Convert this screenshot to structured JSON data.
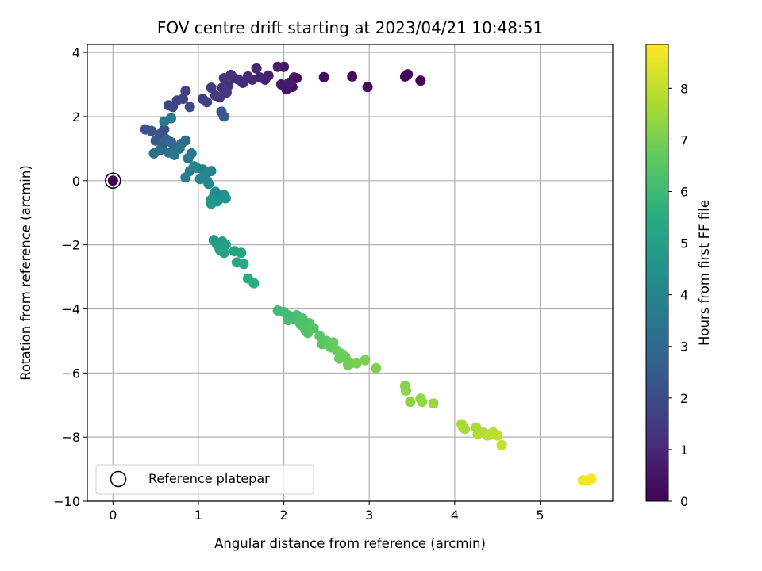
{
  "chart_data": {
    "type": "scatter",
    "title": "FOV centre drift starting at 2023/04/21 10:48:51",
    "xlabel": "Angular distance from reference (arcmin)",
    "ylabel": "Rotation from reference (arcmin)",
    "xlim": [
      -0.3,
      5.85
    ],
    "ylim": [
      -10,
      4.25
    ],
    "x_ticks": [
      0,
      1,
      2,
      3,
      4,
      5
    ],
    "x_tick_labels": [
      "0",
      "1",
      "2",
      "3",
      "4",
      "5"
    ],
    "y_ticks": [
      4,
      2,
      0,
      -2,
      -4,
      -6,
      -8,
      -10
    ],
    "y_tick_labels": [
      "4",
      "2",
      "0",
      "−2",
      "−4",
      "−6",
      "−8",
      "−10"
    ],
    "grid": true,
    "colormap": "viridis",
    "colorbar": {
      "label": "Hours from first FF file",
      "range": [
        0,
        8.85
      ],
      "ticks": [
        0,
        1,
        2,
        3,
        4,
        5,
        6,
        7,
        8
      ],
      "tick_labels": [
        "0",
        "1",
        "2",
        "3",
        "4",
        "5",
        "6",
        "7",
        "8"
      ]
    },
    "legend": {
      "position": "lower-left",
      "entries": [
        {
          "label": "Reference platepar",
          "marker": "open-circle"
        }
      ]
    },
    "reference_point": {
      "x": 0,
      "y": 0,
      "hours": 0
    },
    "series": [
      {
        "x": [
          3.6,
          3.42,
          3.45,
          2.98,
          2.8,
          2.47,
          2.1,
          2.12,
          2.15,
          2.03,
          2.0,
          1.97,
          2.06,
          1.93,
          1.82,
          1.78,
          1.72,
          1.68,
          1.63,
          1.58,
          1.52,
          1.47,
          1.42,
          1.38,
          1.35,
          1.3,
          1.28,
          1.33,
          1.25,
          1.2,
          1.15,
          1.1,
          1.05,
          1.3,
          1.27
        ],
        "y": [
          3.12,
          3.25,
          3.32,
          2.92,
          3.25,
          3.23,
          2.92,
          3.22,
          3.2,
          2.85,
          3.55,
          3.0,
          3.05,
          3.55,
          3.28,
          3.15,
          3.22,
          3.5,
          3.15,
          3.25,
          3.05,
          3.15,
          3.2,
          3.3,
          2.97,
          3.2,
          2.9,
          2.75,
          2.6,
          2.65,
          2.9,
          2.45,
          2.55,
          2.0,
          2.15
        ],
        "hours": [
          0.05,
          0.1,
          0.15,
          0.2,
          0.25,
          0.3,
          0.35,
          0.4,
          0.45,
          0.5,
          0.55,
          0.6,
          0.65,
          0.7,
          0.75,
          0.8,
          0.85,
          0.9,
          0.95,
          1.0,
          1.05,
          1.1,
          1.15,
          1.2,
          1.25,
          1.3,
          1.35,
          1.4,
          1.45,
          1.5,
          1.55,
          1.6,
          1.65,
          2.6,
          2.4
        ]
      },
      {
        "x": [
          0.85,
          0.82,
          0.75,
          0.7,
          0.65,
          0.9,
          0.6,
          0.55,
          0.45,
          0.38,
          0.5,
          0.58,
          0.62,
          0.68,
          0.72,
          0.8,
          0.85,
          0.55,
          0.48,
          0.65,
          0.72,
          0.78,
          0.88,
          0.92,
          0.68,
          0.6
        ],
        "y": [
          2.8,
          2.55,
          2.5,
          2.3,
          2.35,
          2.3,
          1.6,
          1.45,
          1.55,
          1.6,
          1.25,
          1.1,
          1.3,
          1.2,
          1.05,
          1.15,
          1.25,
          0.95,
          0.85,
          0.88,
          0.8,
          1.0,
          0.7,
          0.85,
          1.95,
          1.85
        ],
        "hours": [
          1.7,
          1.75,
          1.8,
          1.85,
          1.9,
          2.0,
          2.1,
          2.2,
          2.25,
          2.3,
          2.5,
          2.7,
          2.8,
          2.9,
          3.0,
          3.05,
          3.1,
          3.15,
          3.2,
          3.3,
          3.35,
          3.4,
          3.45,
          3.5,
          3.55,
          3.6
        ]
      },
      {
        "x": [
          0.9,
          0.85,
          0.98,
          1.05,
          1.1,
          1.15,
          1.08,
          1.02,
          0.95,
          1.12,
          1.2,
          1.18,
          1.25,
          1.3,
          1.32,
          1.22,
          1.15,
          1.15
        ],
        "y": [
          0.3,
          0.1,
          0.4,
          0.35,
          0.0,
          0.3,
          0.15,
          0.05,
          0.45,
          -0.1,
          -0.35,
          -0.5,
          -0.55,
          -0.45,
          -0.55,
          -0.65,
          -0.6,
          -0.72
        ],
        "hours": [
          3.7,
          3.75,
          3.8,
          3.85,
          3.9,
          3.95,
          4.0,
          4.05,
          4.1,
          4.15,
          4.25,
          4.3,
          4.35,
          4.4,
          4.45,
          4.5,
          4.55,
          4.6
        ]
      },
      {
        "x": [
          1.18,
          1.22,
          1.28,
          1.32,
          1.25,
          1.3,
          1.42,
          1.5,
          1.45,
          1.53,
          1.58,
          1.65
        ],
        "y": [
          -1.85,
          -2.0,
          -1.9,
          -2.0,
          -2.15,
          -2.25,
          -2.2,
          -2.25,
          -2.55,
          -2.6,
          -3.05,
          -3.2
        ],
        "hours": [
          4.8,
          4.85,
          4.9,
          4.95,
          5.0,
          5.05,
          5.1,
          5.15,
          5.25,
          5.3,
          5.45,
          5.5
        ]
      },
      {
        "x": [
          1.93,
          2.0,
          2.05,
          2.1,
          2.15,
          2.18,
          2.22,
          2.3,
          2.28,
          2.35,
          2.42,
          2.45,
          2.5,
          2.55,
          2.58,
          2.62,
          2.68,
          2.72,
          2.78,
          2.75,
          2.85,
          2.95,
          3.08,
          2.65,
          2.05,
          2.2,
          2.25
        ],
        "y": [
          -4.05,
          -4.1,
          -4.2,
          -4.3,
          -4.2,
          -4.4,
          -4.3,
          -4.45,
          -4.75,
          -4.6,
          -4.85,
          -5.1,
          -5.0,
          -5.2,
          -5.05,
          -5.3,
          -5.4,
          -5.5,
          -5.7,
          -5.75,
          -5.7,
          -5.6,
          -5.85,
          -5.55,
          -4.35,
          -4.5,
          -4.65
        ],
        "hours": [
          6.0,
          6.05,
          6.1,
          6.15,
          6.2,
          6.25,
          6.3,
          6.35,
          6.4,
          6.45,
          6.5,
          6.55,
          6.6,
          6.65,
          6.7,
          6.75,
          6.8,
          6.85,
          6.9,
          6.95,
          7.0,
          7.05,
          7.1,
          6.78,
          6.12,
          6.32,
          6.38
        ]
      },
      {
        "x": [
          3.42,
          3.43,
          3.48,
          3.6,
          3.62,
          3.75,
          4.08,
          4.1,
          4.12,
          4.25,
          4.27,
          4.33,
          4.38,
          4.42,
          4.45,
          4.5,
          4.55
        ],
        "y": [
          -6.4,
          -6.55,
          -6.9,
          -6.8,
          -6.9,
          -6.95,
          -7.6,
          -7.7,
          -7.75,
          -7.7,
          -7.9,
          -7.85,
          -7.95,
          -7.9,
          -7.85,
          -7.95,
          -8.25
        ],
        "hours": [
          7.2,
          7.25,
          7.3,
          7.35,
          7.4,
          7.45,
          7.6,
          7.65,
          7.7,
          7.75,
          7.8,
          7.85,
          7.9,
          7.95,
          8.0,
          8.05,
          8.1
        ]
      },
      {
        "x": [
          5.5,
          5.55,
          5.6
        ],
        "y": [
          -9.35,
          -9.35,
          -9.3
        ],
        "hours": [
          8.6,
          8.7,
          8.8
        ]
      }
    ]
  }
}
